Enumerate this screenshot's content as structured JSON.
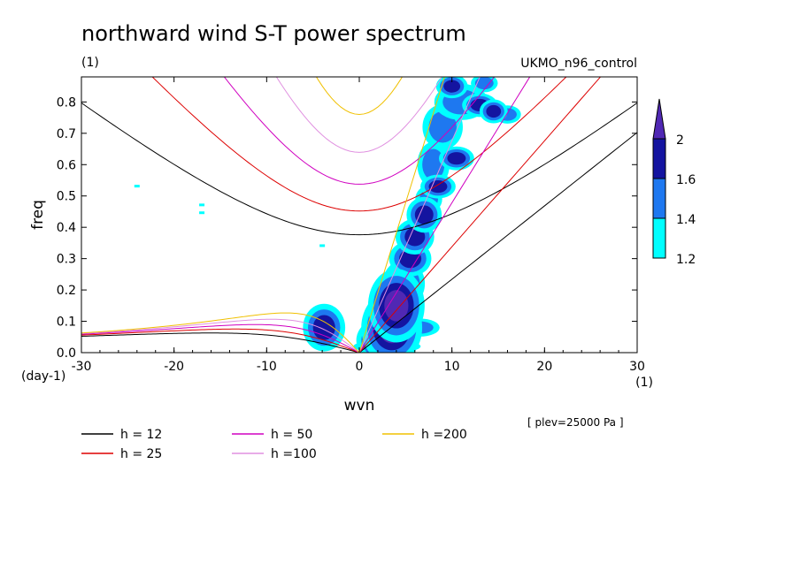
{
  "chart_data": {
    "type": "contour",
    "title": "northward wind S-T power spectrum",
    "subtitle_left": "(1)",
    "subtitle_right": "UKMO_n96_control",
    "xlabel": "wvn",
    "ylabel": "freq",
    "x_units": "(1)",
    "y_units": "(day-1)",
    "annotation": "[ plev=25000 Pa ]",
    "xlim": [
      -30,
      30
    ],
    "ylim": [
      0,
      0.88
    ],
    "xticks": [
      -30,
      -20,
      -10,
      0,
      10,
      20,
      30
    ],
    "xtick_labels": [
      "-30",
      "-20",
      "-10",
      "0",
      "10",
      "20",
      "30"
    ],
    "yticks": [
      0.0,
      0.1,
      0.2,
      0.3,
      0.4,
      0.5,
      0.6,
      0.7,
      0.8
    ],
    "ytick_labels": [
      "0.0",
      "0.1",
      "0.2",
      "0.3",
      "0.4",
      "0.5",
      "0.6",
      "0.7",
      "0.8"
    ],
    "colorbar": {
      "levels": [
        "1.2",
        "1.4",
        "1.6",
        "2"
      ],
      "colors": [
        "#00ffff",
        "#1e78f0",
        "#1414a0",
        "#5028b4"
      ]
    },
    "dispersion_curves": [
      {
        "label": "h = 12",
        "h": 12,
        "color": "#000000"
      },
      {
        "label": "h = 25",
        "h": 25,
        "color": "#dd0000"
      },
      {
        "label": "h = 50",
        "h": 50,
        "color": "#d000c0"
      },
      {
        "label": "h =100",
        "h": 100,
        "color": "#e090e0"
      },
      {
        "label": "h =200",
        "h": 200,
        "color": "#f0c000"
      }
    ],
    "contour_blobs": [
      {
        "x": 2.5,
        "y": 0.04,
        "rx": 1.2,
        "ry": 0.03,
        "level": 3
      },
      {
        "x": 3.5,
        "y": 0.08,
        "rx": 1.4,
        "ry": 0.05,
        "level": 3
      },
      {
        "x": 4.0,
        "y": 0.15,
        "rx": 1.3,
        "ry": 0.05,
        "level": 3
      },
      {
        "x": 4.8,
        "y": 0.22,
        "rx": 1.2,
        "ry": 0.04,
        "level": 2
      },
      {
        "x": 5.5,
        "y": 0.3,
        "rx": 1.2,
        "ry": 0.03,
        "level": 2
      },
      {
        "x": 6.0,
        "y": 0.37,
        "rx": 1.1,
        "ry": 0.03,
        "level": 2
      },
      {
        "x": 7.0,
        "y": 0.44,
        "rx": 1.0,
        "ry": 0.03,
        "level": 2
      },
      {
        "x": 8.5,
        "y": 0.53,
        "rx": 1.0,
        "ry": 0.02,
        "level": 2
      },
      {
        "x": 10.5,
        "y": 0.62,
        "rx": 1.0,
        "ry": 0.02,
        "level": 2
      },
      {
        "x": 13.0,
        "y": 0.79,
        "rx": 1.0,
        "ry": 0.02,
        "level": 2
      },
      {
        "x": 10.0,
        "y": 0.85,
        "rx": 0.9,
        "ry": 0.02,
        "level": 2
      },
      {
        "x": 14.5,
        "y": 0.77,
        "rx": 0.8,
        "ry": 0.02,
        "level": 2
      },
      {
        "x": -3.8,
        "y": 0.08,
        "rx": 1.2,
        "ry": 0.04,
        "level": 2
      },
      {
        "x": -4.5,
        "y": 0.05,
        "rx": 0.9,
        "ry": 0.02,
        "level": 1
      },
      {
        "x": -3.5,
        "y": 0.12,
        "rx": 0.5,
        "ry": 0.015,
        "level": 1
      },
      {
        "x": 8.0,
        "y": 0.6,
        "rx": 1.2,
        "ry": 0.05,
        "level": 1
      },
      {
        "x": 9.0,
        "y": 0.72,
        "rx": 1.5,
        "ry": 0.05,
        "level": 1
      },
      {
        "x": 11.0,
        "y": 0.8,
        "rx": 2.0,
        "ry": 0.04,
        "level": 1
      },
      {
        "x": 7.5,
        "y": 0.49,
        "rx": 1.0,
        "ry": 0.03,
        "level": 1
      },
      {
        "x": 16.0,
        "y": 0.76,
        "rx": 1.0,
        "ry": 0.02,
        "level": 1
      },
      {
        "x": 13.5,
        "y": 0.86,
        "rx": 1.0,
        "ry": 0.02,
        "level": 1
      },
      {
        "x": 3.0,
        "y": 0.02,
        "rx": 2.5,
        "ry": 0.015,
        "level": 1
      },
      {
        "x": 6.5,
        "y": 0.08,
        "rx": 1.5,
        "ry": 0.02,
        "level": 1
      }
    ],
    "contour_extras": [
      {
        "x": -24,
        "y": 0.53,
        "level": 0
      },
      {
        "x": -17,
        "y": 0.47,
        "level": 0
      },
      {
        "x": -17,
        "y": 0.445,
        "level": 0
      },
      {
        "x": -4,
        "y": 0.34,
        "level": 0
      }
    ]
  },
  "legend": {
    "items": [
      {
        "label": "h = 12",
        "color": "#000000"
      },
      {
        "label": "h = 25",
        "color": "#dd0000"
      },
      {
        "label": "h = 50",
        "color": "#d000c0"
      },
      {
        "label": "h =100",
        "color": "#e090e0"
      },
      {
        "label": "h =200",
        "color": "#f0c000"
      }
    ]
  }
}
